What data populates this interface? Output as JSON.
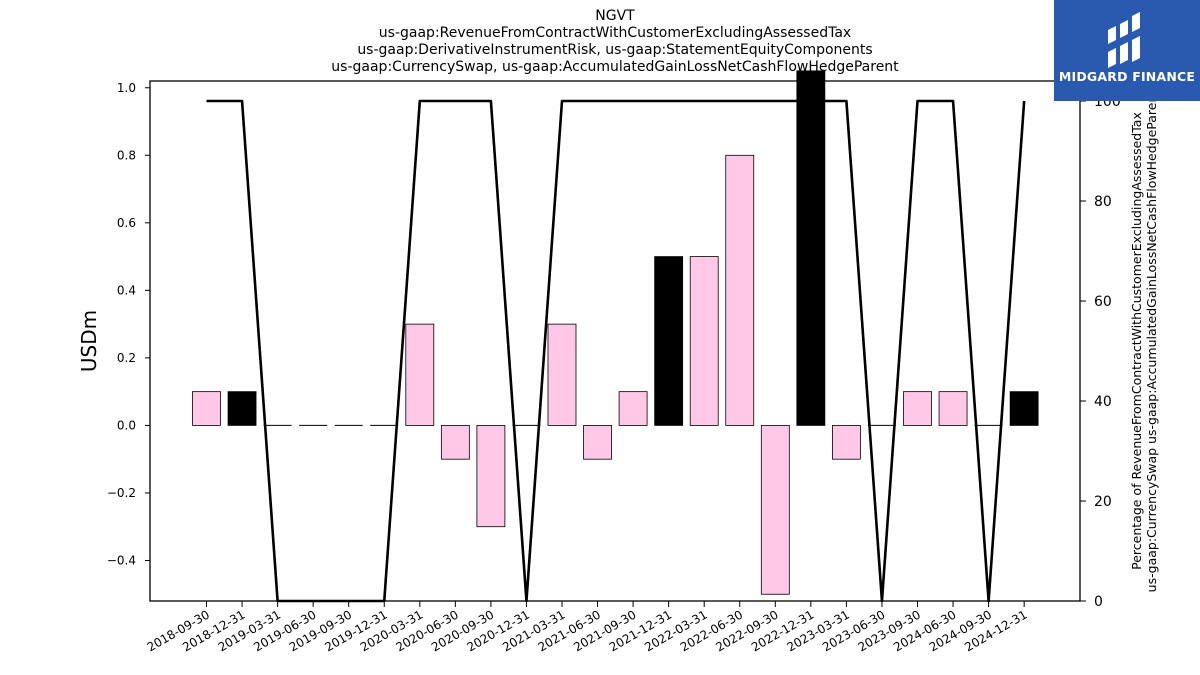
{
  "title_lines": [
    "NGVT",
    "us-gaap:RevenueFromContractWithCustomerExcludingAssessedTax",
    "us-gaap:DerivativeInstrumentRisk, us-gaap:StatementEquityComponents",
    "us-gaap:CurrencySwap, us-gaap:AccumulatedGainLossNetCashFlowHedgeParent"
  ],
  "logo": {
    "text": "MIDGARD FINANCE"
  },
  "colors": {
    "pink": "#ffc8e6",
    "black": "#000000",
    "line": "#000000"
  },
  "chart_data": {
    "type": "bar",
    "categories": [
      "2018-09-30",
      "2018-12-31",
      "2019-03-31",
      "2019-06-30",
      "2019-09-30",
      "2019-12-31",
      "2020-03-31",
      "2020-06-30",
      "2020-09-30",
      "2020-12-31",
      "2021-03-31",
      "2021-06-30",
      "2021-09-30",
      "2021-12-31",
      "2022-03-31",
      "2022-06-30",
      "2022-09-30",
      "2022-12-31",
      "2023-03-31",
      "2023-06-30",
      "2023-09-30",
      "2024-06-30",
      "2024-09-30",
      "2024-12-31"
    ],
    "values": [
      0.1,
      0.1,
      0,
      0,
      0,
      0,
      0.3,
      -0.1,
      -0.3,
      0,
      0.3,
      -0.1,
      0.1,
      0.5,
      0.5,
      0.8,
      -0.5,
      1.05,
      -0.1,
      0,
      0.1,
      0.1,
      0,
      0.1
    ],
    "bar_colors": [
      "pink",
      "black",
      "pink",
      "pink",
      "pink",
      "pink",
      "pink",
      "pink",
      "pink",
      "pink",
      "pink",
      "pink",
      "pink",
      "black",
      "pink",
      "pink",
      "pink",
      "black",
      "pink",
      "pink",
      "pink",
      "pink",
      "pink",
      "black"
    ],
    "line_values": [
      100,
      100,
      0,
      0,
      0,
      0,
      100,
      100,
      100,
      0,
      100,
      100,
      100,
      100,
      100,
      100,
      100,
      100,
      100,
      0,
      100,
      100,
      0,
      100
    ],
    "ylabel": "USDm",
    "ylabel_right": [
      "Percentage of RevenueFromContractWithCustomerExcludingAssessedTax",
      "us-gaap:CurrencySwap us-gaap:AccumulatedGainLossNetCashFlowHedgeParent"
    ],
    "ylim": [
      -0.52,
      1.02
    ],
    "ylim_right": [
      0,
      104
    ],
    "yticks": [
      -0.4,
      -0.2,
      0.0,
      0.2,
      0.4,
      0.6,
      0.8,
      1.0
    ],
    "ytick_labels": [
      "−0.4",
      "−0.2",
      "0.0",
      "0.2",
      "0.4",
      "0.6",
      "0.8",
      "1.0"
    ],
    "yticks_right": [
      0,
      20,
      40,
      60,
      80,
      100
    ],
    "ytick_labels_right": [
      "0",
      "20",
      "40",
      "60",
      "80",
      "100"
    ],
    "grid": false
  }
}
